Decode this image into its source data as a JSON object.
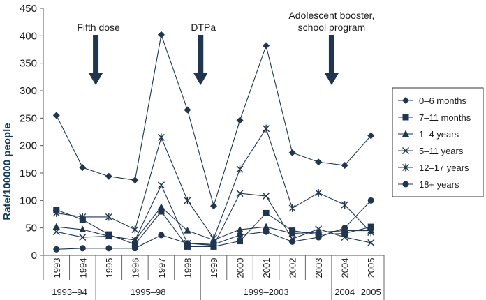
{
  "chart_data": {
    "type": "line",
    "title": "",
    "xlabel": "",
    "ylabel": "Rate/100000 people",
    "ylim": [
      0,
      450
    ],
    "yticks": [
      "0",
      "50",
      "100",
      "150",
      "200",
      "250",
      "300",
      "350",
      "400",
      "450"
    ],
    "x": [
      "1993",
      "1994",
      "1995",
      "1996",
      "1997",
      "1998",
      "1999",
      "2000",
      "2001",
      "2002",
      "2003",
      "2004",
      "2005"
    ],
    "periods": [
      {
        "label": "1993–94",
        "from": "1993",
        "to": "1994"
      },
      {
        "label": "1995–98",
        "from": "1995",
        "to": "1998"
      },
      {
        "label": "1999–2003",
        "from": "1999",
        "to": "2003"
      },
      {
        "label": "2004",
        "from": "2004",
        "to": "2004"
      },
      {
        "label": "2005",
        "from": "2005",
        "to": "2005"
      }
    ],
    "annotations": [
      {
        "lines": [
          "Fifth dose"
        ],
        "at": "1995"
      },
      {
        "lines": [
          "DTPa"
        ],
        "at": "1999"
      },
      {
        "lines": [
          "Adolescent booster,",
          "school program"
        ],
        "at": "2004"
      }
    ],
    "legend_position": "right",
    "line_color": "#1f3550",
    "series": [
      {
        "name": "0–6 months",
        "marker": "diamond",
        "values": [
          255,
          160,
          144,
          137,
          402,
          265,
          90,
          246,
          382,
          187,
          170,
          164,
          218
        ]
      },
      {
        "name": "7–11 months",
        "marker": "square",
        "values": [
          83,
          65,
          38,
          20,
          80,
          16,
          16,
          26,
          77,
          45,
          38,
          40,
          52
        ]
      },
      {
        "name": "1–4 years",
        "marker": "triangle",
        "values": [
          52,
          47,
          35,
          28,
          88,
          45,
          28,
          47,
          52,
          40,
          42,
          45,
          45
        ]
      },
      {
        "name": "5–11 years",
        "marker": "x",
        "values": [
          43,
          33,
          35,
          28,
          128,
          22,
          18,
          113,
          108,
          30,
          48,
          33,
          23
        ]
      },
      {
        "name": "12–17 years",
        "marker": "star",
        "values": [
          77,
          70,
          70,
          47,
          215,
          100,
          31,
          157,
          231,
          86,
          114,
          92,
          42
        ]
      },
      {
        "name": "18+ years",
        "marker": "circle",
        "values": [
          11,
          13,
          13,
          13,
          37,
          22,
          20,
          37,
          43,
          25,
          33,
          50,
          100
        ]
      }
    ]
  }
}
